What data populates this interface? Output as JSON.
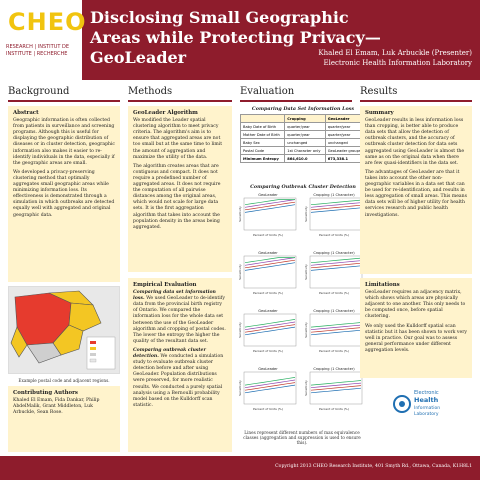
{
  "header": {
    "logo_word": "CHEO",
    "logo_lines": [
      "RESEARCH | INSTITUT DE",
      "INSTITUTE | RECHERCHE"
    ],
    "title": "Disclosing Small Geographic Areas while Protecting Privacy—GeoLeader",
    "presenter": "Khaled El Emam, Luk Arbuckle (Presenter)",
    "lab": "Electronic Health Information Laboratory"
  },
  "columns": {
    "background": "Background",
    "methods": "Methods",
    "evaluation": "Evaluation",
    "results": "Results"
  },
  "abstract": {
    "heading": "Abstract",
    "p1": "Geographic information is often collected from patients in surveillance and screening programs. Although this is useful for displaying the geographic distribution of diseases or in cluster detection, geographic information also makes it easier to re-identify individuals in the data, especially if the geographic areas are small.",
    "p2": "We developed a privacy-preserving clustering method that optimally aggregates small geographic areas while minimizing information loss. Its effectiveness is demonstrated through a simulation in which outbreaks are detected equally well with aggregated and original geographic data."
  },
  "map_caption": "Example postal code and adjacent regions.",
  "contributors": {
    "heading": "Contributing Authors",
    "text": "Khaled El Emam, Fida Dankar, Philip AbdelMalik, Grant Middleton, Luk Arbuckle, Sean Rose."
  },
  "algorithm": {
    "heading": "GeoLeader Algorithm",
    "p1": "We modified the Leader spatial clustering algorithm to meet privacy criteria. The algorithm's aim is to ensure that aggregated areas are not too small but at the same time to limit the amount of aggregation and maximize the utility of the data.",
    "p2": "The algorithm creates areas that are contiguous and compact. It does not require a predefined number of aggregated areas. It does not require the computation of all pairwise distances among the original areas, which would not scale for large data sets. It is the first aggregation algorithm that takes into account the population density in the areas being aggregated."
  },
  "empirical": {
    "heading": "Empirical Evaluation",
    "lead1": "Comparing data set information loss.",
    "p1": "We used GeoLeader to de-identify data from the provincial birth registry of Ontario. We compared the information loss for the whole data set between the use of the GeoLeader algorithm and cropping of postal codes. The lower the entropy the higher the quality of the resultant data set.",
    "lead2": "Comparing outbreak cluster detection.",
    "p2": "We conducted a simulation study to evaluate outbreak cluster detection before and after using GeoLeader. Population distributions were preserved, for more realistic results. We conducted a purely spatial analysis using a Bernoulli probability model based on the Kulldorff scan statistic."
  },
  "table": {
    "title": "Comparing Data Set Information Loss",
    "headers": [
      "",
      "Cropping",
      "GeoLeader"
    ],
    "rows": [
      [
        "Baby Date of Birth",
        "quarter/year",
        "quarter/year"
      ],
      [
        "Mother Date of Birth",
        "quarter/year",
        "quarter/year"
      ],
      [
        "Baby Sex",
        "unchanged",
        "unchanged"
      ],
      [
        "Postal Code",
        "1st Character only",
        "GeoLeader groups"
      ],
      [
        "Minimum Entropy",
        "864,610.0",
        "673,338.1"
      ]
    ]
  },
  "figure": {
    "title": "Comparing Outbreak Cluster Detection",
    "panel_titles": [
      "GeoLeader",
      "Cropping (1 Character)",
      "GeoLeader",
      "Cropping (1 Character)",
      "GeoLeader",
      "Cropping (1 Character)",
      "GeoLeader",
      "Cropping (1 Character)"
    ],
    "x_label": "Percent of Units (%)",
    "y_label": "Sensitivity",
    "caption": "Lines represent different numbers of max equivalence classes (aggregation and suppression is used to ensure this)."
  },
  "summary": {
    "heading": "Summary",
    "p1": "GeoLeader results in less information loss than cropping, is better able to produce data sets that allow the detection of outbreak clusters, and the accuracy of outbreak cluster detection for data sets aggregated using GeoLeader is almost the same as on the original data when there are few quasi-identifiers in the data set.",
    "p2": "The advantages of GeoLeader are that it takes into account the other non-geographic variables in a data set that can be used for re-identification, and results in less aggregation of small areas. This means data sets will be of higher utility for health services research and public health investigations."
  },
  "limitations": {
    "heading": "Limitations",
    "p1": "GeoLeader requires an adjacency matrix, which shows which areas are physically adjacent to one another. This only needs to be computed once, before spatial clustering.",
    "p2": "We only used the Kulldorff spatial scan statistic but it has been shown to work very well in practice. Our goal was to assess general performance under different aggregation levels."
  },
  "osu_logo": [
    "Electronic",
    "Health",
    "Information",
    "Laboratory"
  ],
  "footer": "Copyright 2013 CHEO Research Institute, 401 Smyth Rd., Ottawa, Canada, K1H8L1",
  "colors": {
    "header": "#8e1c2c",
    "panel": "#fff3cc",
    "accent": "#f1c40f"
  }
}
